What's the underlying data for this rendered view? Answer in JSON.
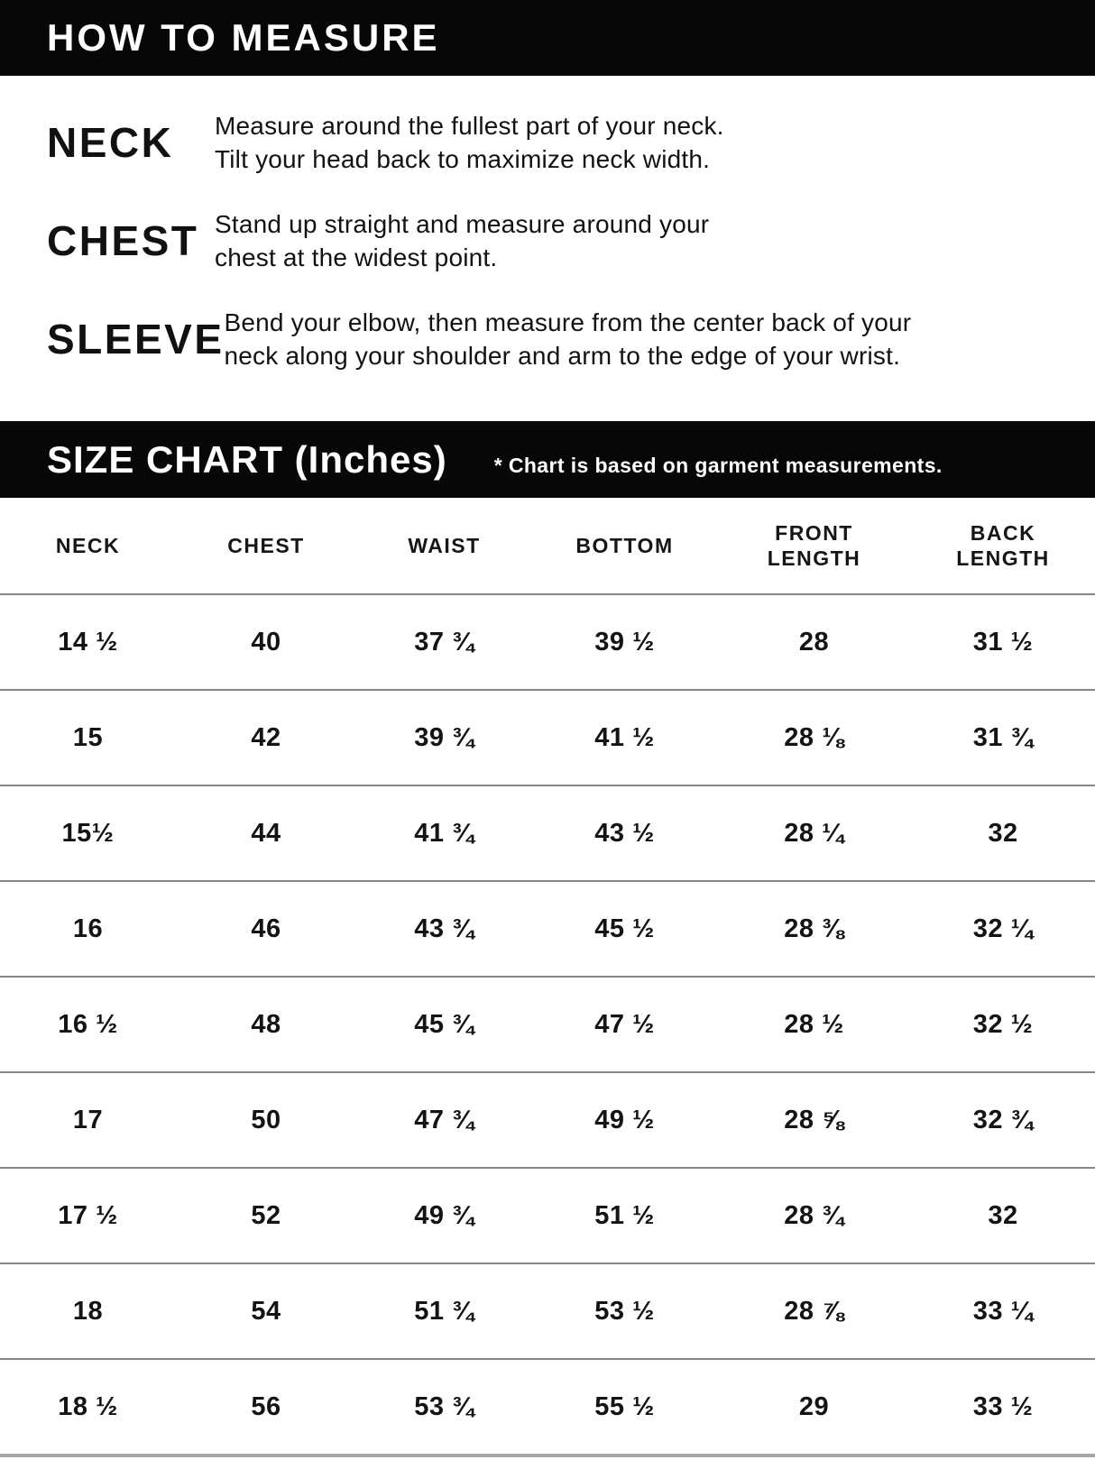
{
  "how_to_measure": {
    "title": "HOW TO MEASURE",
    "items": [
      {
        "label": "NECK",
        "line1": "Measure around the fullest part of your neck.",
        "line2": "Tilt your head back to maximize neck width."
      },
      {
        "label": "CHEST",
        "line1": "Stand up straight and measure around your",
        "line2": "chest at the widest point."
      },
      {
        "label": "SLEEVE",
        "line1": "Bend your elbow, then measure from the center back of your",
        "line2": "neck along your shoulder and arm to the edge of your wrist."
      }
    ]
  },
  "size_chart": {
    "title": "SIZE CHART (Inches)",
    "note": "* Chart is based on garment measurements.",
    "columns": [
      "NECK",
      "CHEST",
      "WAIST",
      "BOTTOM",
      "FRONT\nLENGTH",
      "BACK\nLENGTH"
    ],
    "rows": [
      [
        "14 ½",
        "40",
        "37 ¾",
        "39 ½",
        "28",
        "31 ½"
      ],
      [
        "15",
        "42",
        "39 ¾",
        "41 ½",
        "28 ⅛",
        "31 ¾"
      ],
      [
        "15½",
        "44",
        "41 ¾",
        "43 ½",
        "28 ¼",
        "32"
      ],
      [
        "16",
        "46",
        "43 ¾",
        "45 ½",
        "28 ⅜",
        "32 ¼"
      ],
      [
        "16 ½",
        "48",
        "45 ¾",
        "47 ½",
        "28 ½",
        "32 ½"
      ],
      [
        "17",
        "50",
        "47 ¾",
        "49 ½",
        "28 ⅝",
        "32 ¾"
      ],
      [
        "17 ½",
        "52",
        "49 ¾",
        "51 ½",
        "28 ¾",
        "32"
      ],
      [
        "18",
        "54",
        "51 ¾",
        "53 ½",
        "28 ⅞",
        "33 ¼"
      ],
      [
        "18 ½",
        "56",
        "53 ¾",
        "55 ½",
        "29",
        "33 ½"
      ]
    ],
    "colors": {
      "bar_background": "#070707",
      "bar_text": "#ffffff",
      "divider": "#858585"
    }
  }
}
